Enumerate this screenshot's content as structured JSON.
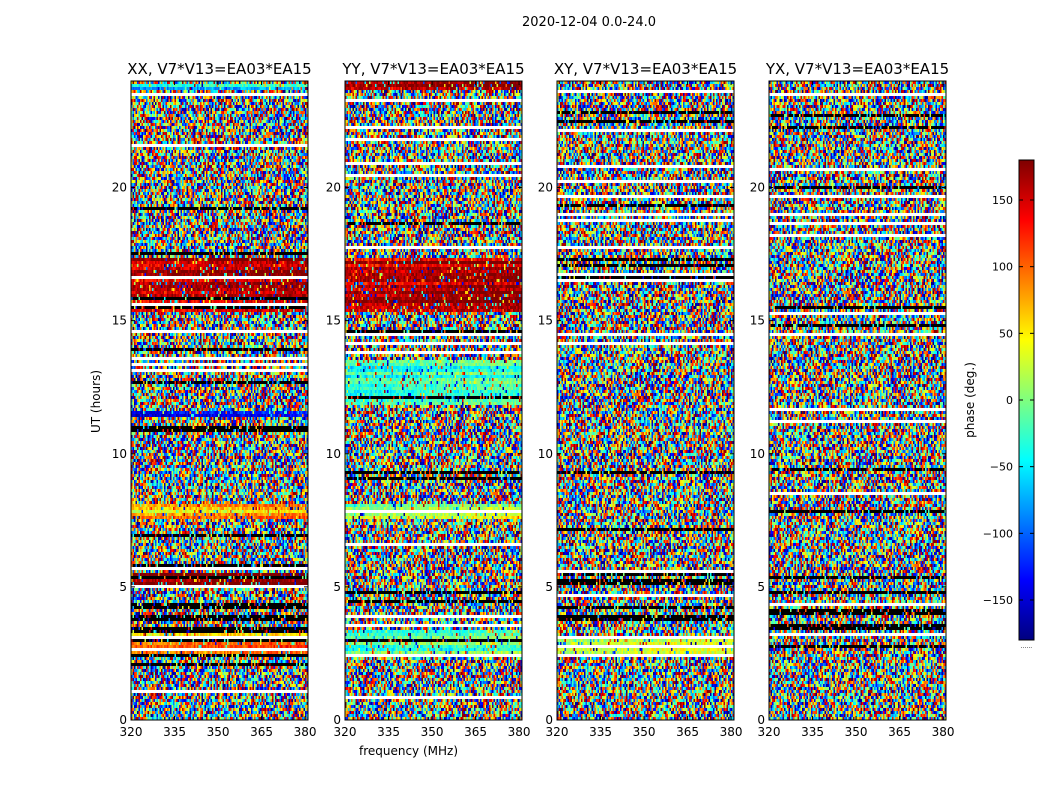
{
  "figure": {
    "suptitle": "2020-12-04 0.0-24.0"
  },
  "colorbar": {
    "label": "phase (deg.)",
    "ticks": [
      150,
      100,
      50,
      0,
      -50,
      -100,
      -150
    ],
    "range": [
      -180,
      180
    ],
    "cmap": "jet",
    "colors": [
      "#00007f",
      "#0000ff",
      "#007fff",
      "#00ffff",
      "#7fff7f",
      "#ffff00",
      "#ff7f00",
      "#ff0000",
      "#7f0000"
    ],
    "footer": "......"
  },
  "chart_data": [
    {
      "type": "heatmap",
      "title": "XX, V7*V13=EA03*EA15",
      "xlabel": "",
      "ylabel": "UT (hours)",
      "xlim": [
        320,
        381
      ],
      "ylim": [
        0,
        24
      ],
      "xticks": [
        320,
        335,
        350,
        365,
        380
      ],
      "yticks": [
        0,
        5,
        10,
        15,
        20
      ],
      "value": "phase (deg.)",
      "note": "per-channel/time phase noise with flagged (white) and black gap rows",
      "coherent_bands": [
        {
          "t0": 15.3,
          "t1": 17.3,
          "phase": 150
        },
        {
          "t0": 2.4,
          "t1": 3.4,
          "phase": 70
        },
        {
          "t0": 7.5,
          "t1": 8.1,
          "phase": 60
        },
        {
          "t0": 5.1,
          "t1": 5.5,
          "phase": 175
        },
        {
          "t0": 11.4,
          "t1": 11.6,
          "phase": -150
        },
        {
          "t0": 23.7,
          "t1": 23.9,
          "phase": -60
        }
      ]
    },
    {
      "type": "heatmap",
      "title": "YY, V7*V13=EA03*EA15",
      "xlabel": "frequency (MHz)",
      "ylabel": "",
      "xlim": [
        320,
        381
      ],
      "ylim": [
        0,
        24
      ],
      "xticks": [
        320,
        335,
        350,
        365,
        380
      ],
      "yticks": [
        0,
        5,
        10,
        15,
        20
      ],
      "value": "phase (deg.)",
      "coherent_bands": [
        {
          "t0": 15.3,
          "t1": 17.3,
          "phase": 150
        },
        {
          "t0": 2.4,
          "t1": 3.4,
          "phase": -30
        },
        {
          "t0": 7.5,
          "t1": 8.1,
          "phase": 10
        },
        {
          "t0": 11.8,
          "t1": 13.5,
          "phase": -40
        },
        {
          "t0": 23.7,
          "t1": 24.0,
          "phase": 160
        }
      ]
    },
    {
      "type": "heatmap",
      "title": "XY, V7*V13=EA03*EA15",
      "xlabel": "",
      "ylabel": "",
      "xlim": [
        320,
        381
      ],
      "ylim": [
        0,
        24
      ],
      "xticks": [
        320,
        335,
        350,
        365,
        380
      ],
      "yticks": [
        0,
        5,
        10,
        15,
        20
      ],
      "value": "phase (deg.)",
      "coherent_bands": [
        {
          "t0": 2.5,
          "t1": 3.2,
          "phase": 40
        }
      ]
    },
    {
      "type": "heatmap",
      "title": "YX, V7*V13=EA03*EA15",
      "xlabel": "",
      "ylabel": "",
      "xlim": [
        320,
        381
      ],
      "ylim": [
        0,
        24
      ],
      "xticks": [
        320,
        335,
        350,
        365,
        380
      ],
      "yticks": [
        0,
        5,
        10,
        15,
        20
      ],
      "value": "phase (deg.)",
      "coherent_bands": []
    }
  ]
}
